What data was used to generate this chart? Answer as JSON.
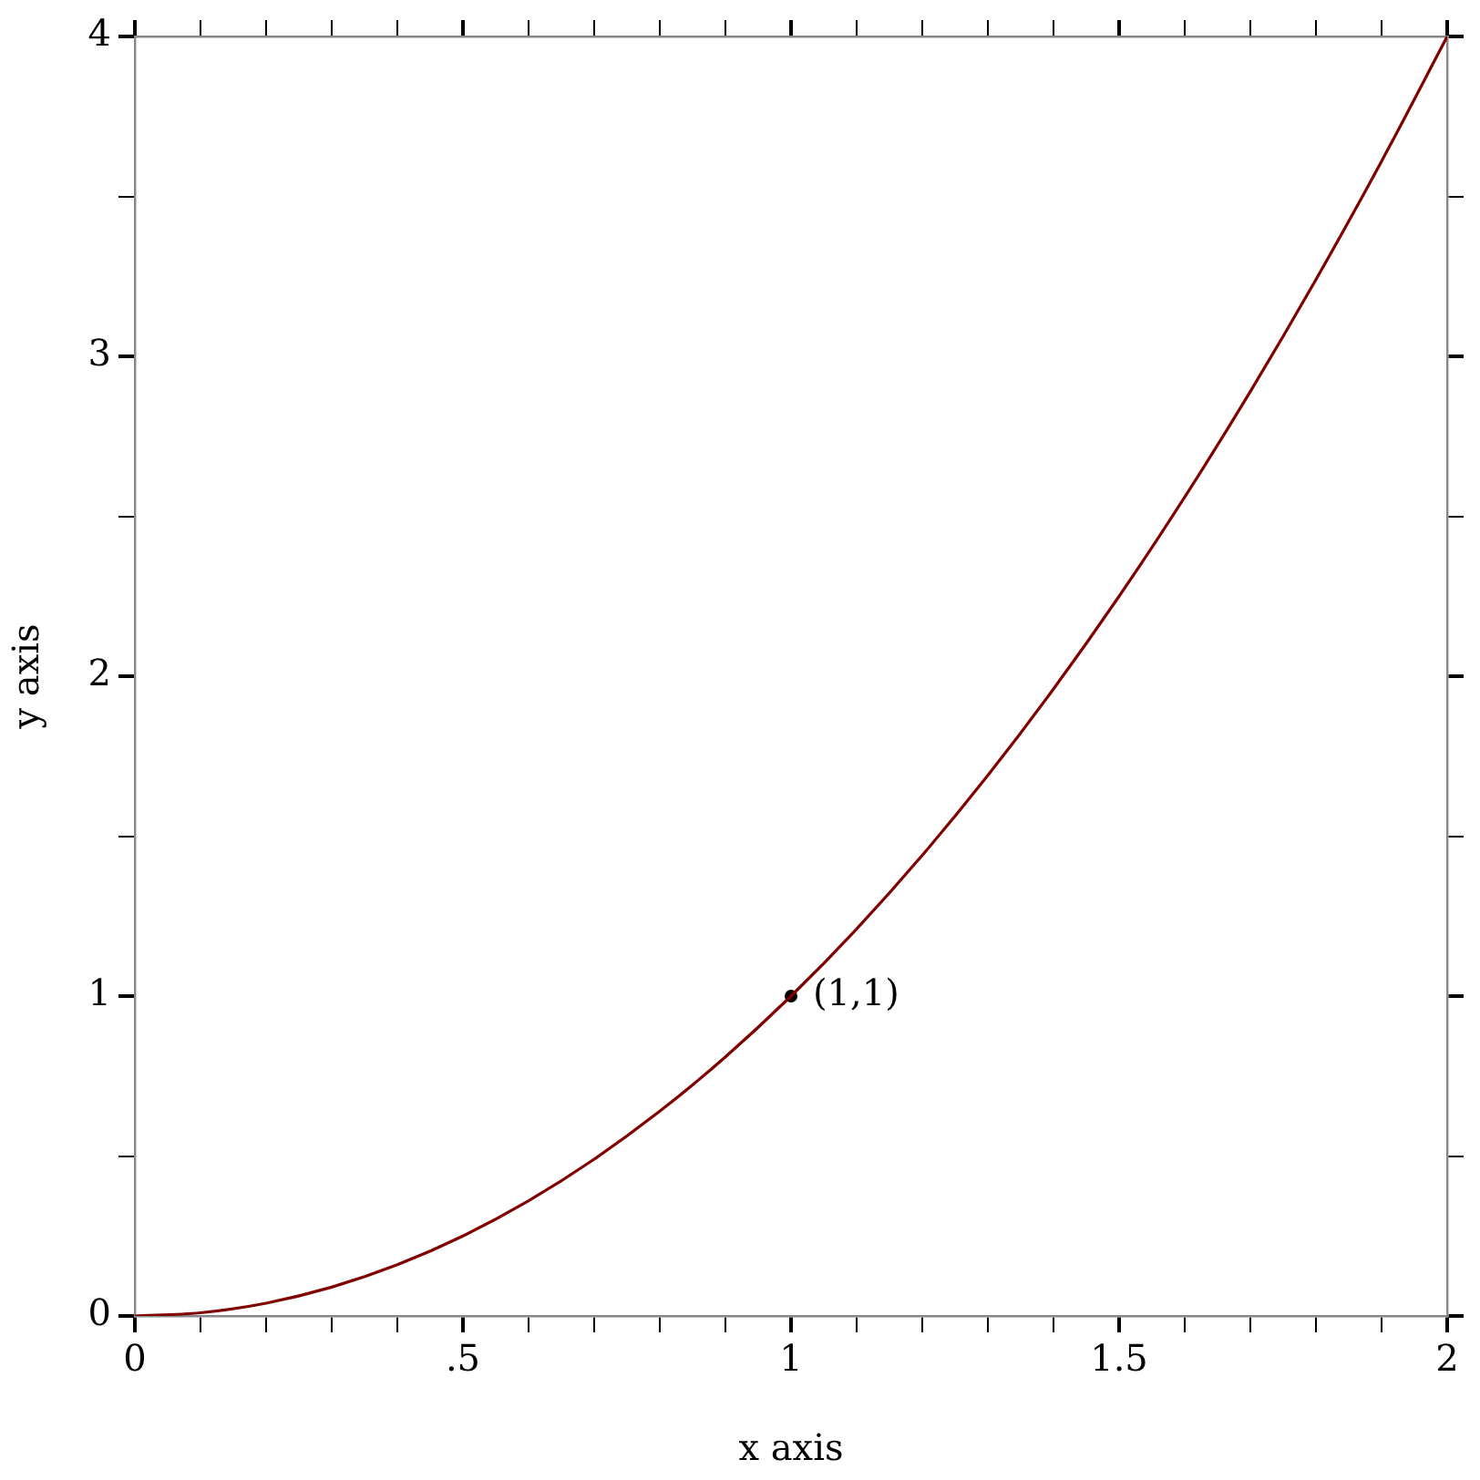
{
  "chart_data": {
    "type": "line",
    "xlabel": "x axis",
    "ylabel": "y axis",
    "xlim": [
      0,
      2
    ],
    "ylim": [
      0,
      4
    ],
    "xticks": [
      0,
      {
        "value": 0.1,
        "label": null
      },
      {
        "value": 0.2,
        "label": null
      },
      {
        "value": 0.3,
        "label": null
      },
      {
        "value": 0.4,
        "label": null
      },
      {
        "value": 0.5,
        "label": ".5"
      },
      {
        "value": 0.6,
        "label": null
      },
      {
        "value": 0.7,
        "label": null
      },
      {
        "value": 0.8,
        "label": null
      },
      {
        "value": 0.9,
        "label": null
      },
      1,
      {
        "value": 1.1,
        "label": null
      },
      {
        "value": 1.2,
        "label": null
      },
      {
        "value": 1.3,
        "label": null
      },
      {
        "value": 1.4,
        "label": null
      },
      1.5,
      {
        "value": 1.6,
        "label": null
      },
      {
        "value": 1.7,
        "label": null
      },
      {
        "value": 1.8,
        "label": null
      },
      {
        "value": 1.9,
        "label": null
      },
      2
    ],
    "yticks": [
      0,
      {
        "value": 0.5,
        "label": null
      },
      1,
      {
        "value": 1.5,
        "label": null
      },
      2,
      {
        "value": 2.5,
        "label": null
      },
      3,
      {
        "value": 3.5,
        "label": null
      },
      4
    ],
    "grid": false,
    "legend": false,
    "series": [
      {
        "type": "line",
        "color": "#800000",
        "marker": "none",
        "x": [
          0,
          0.1,
          0.2,
          0.3,
          0.4,
          0.5,
          0.6,
          0.7,
          0.8,
          0.9,
          1,
          1.1,
          1.2,
          1.3,
          1.4,
          1.5,
          1.6,
          1.7,
          1.8,
          1.9,
          2
        ],
        "values": [
          0,
          0.01,
          0.04,
          0.09,
          0.16,
          0.25,
          0.36,
          0.49,
          0.64,
          0.81,
          1,
          1.21,
          1.44,
          1.69,
          1.96,
          2.25,
          2.56,
          2.89,
          3.24,
          3.61,
          4
        ]
      },
      {
        "type": "scatter",
        "color": "#000000",
        "marker": "circle",
        "x": [
          1
        ],
        "values": [
          1
        ]
      }
    ],
    "annotations": [
      {
        "text": "(1,1)",
        "x": 1,
        "y": 1
      }
    ]
  }
}
